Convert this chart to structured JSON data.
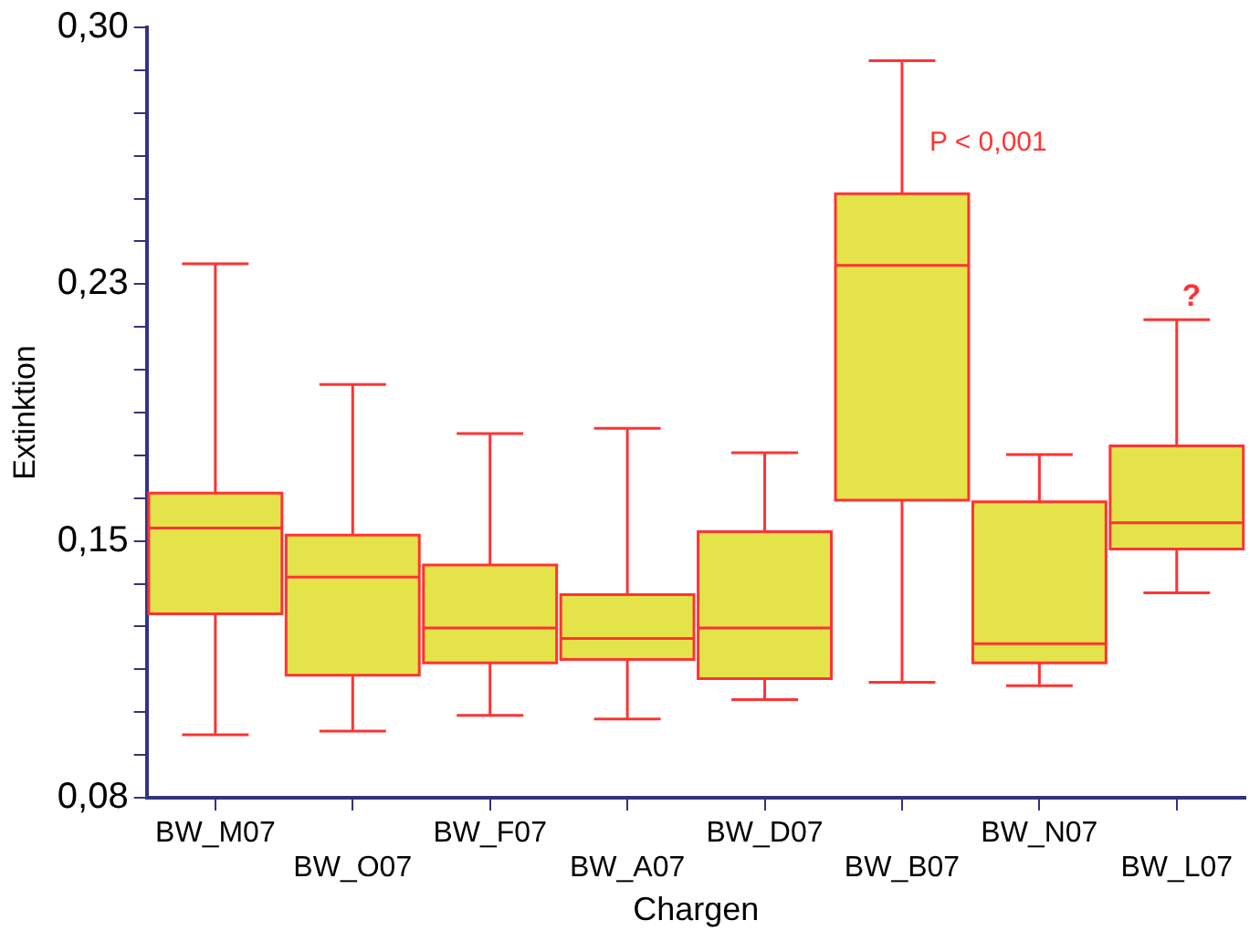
{
  "chart_data": {
    "type": "box",
    "xlabel": "Chargen",
    "ylabel": "Extinktion",
    "categories": [
      "BW_M07",
      "BW_O07",
      "BW_F07",
      "BW_A07",
      "BW_D07",
      "BW_B07",
      "BW_N07",
      "BW_L07"
    ],
    "boxes": [
      {
        "low": 0.098,
        "q1": 0.1325,
        "median": 0.157,
        "q3": 0.167,
        "high": 0.2325
      },
      {
        "low": 0.099,
        "q1": 0.115,
        "median": 0.143,
        "q3": 0.155,
        "high": 0.198
      },
      {
        "low": 0.1035,
        "q1": 0.1185,
        "median": 0.1285,
        "q3": 0.1465,
        "high": 0.184
      },
      {
        "low": 0.1025,
        "q1": 0.1195,
        "median": 0.1255,
        "q3": 0.138,
        "high": 0.1855
      },
      {
        "low": 0.108,
        "q1": 0.114,
        "median": 0.1285,
        "q3": 0.156,
        "high": 0.1785
      },
      {
        "low": 0.113,
        "q1": 0.165,
        "median": 0.232,
        "q3": 0.2525,
        "high": 0.2905
      },
      {
        "low": 0.112,
        "q1": 0.1185,
        "median": 0.124,
        "q3": 0.1645,
        "high": 0.178
      },
      {
        "low": 0.1385,
        "q1": 0.151,
        "median": 0.1585,
        "q3": 0.1805,
        "high": 0.2165
      }
    ],
    "color": "#e5e34a",
    "ylim": [
      0.08,
      0.3
    ],
    "yticks": [
      {
        "value": 0.08,
        "label": "0,08"
      },
      {
        "value": 0.0922,
        "label": null
      },
      {
        "value": 0.1044,
        "label": null
      },
      {
        "value": 0.1167,
        "label": null
      },
      {
        "value": 0.1289,
        "label": null
      },
      {
        "value": 0.1411,
        "label": null
      },
      {
        "value": 0.1533,
        "label": "0,15"
      },
      {
        "value": 0.1656,
        "label": null
      },
      {
        "value": 0.1778,
        "label": null
      },
      {
        "value": 0.19,
        "label": null
      },
      {
        "value": 0.2022,
        "label": null
      },
      {
        "value": 0.2144,
        "label": null
      },
      {
        "value": 0.2267,
        "label": "0,23"
      },
      {
        "value": 0.2389,
        "label": null
      },
      {
        "value": 0.2511,
        "label": null
      },
      {
        "value": 0.2633,
        "label": null
      },
      {
        "value": 0.2756,
        "label": null
      },
      {
        "value": 0.2878,
        "label": null
      },
      {
        "value": 0.3,
        "label": "0,30"
      }
    ],
    "grid": false,
    "legend": false,
    "annotations": [
      {
        "text": "P < 0,001",
        "x": "BW_B07",
        "y": 0.267
      },
      "?"
    ]
  }
}
